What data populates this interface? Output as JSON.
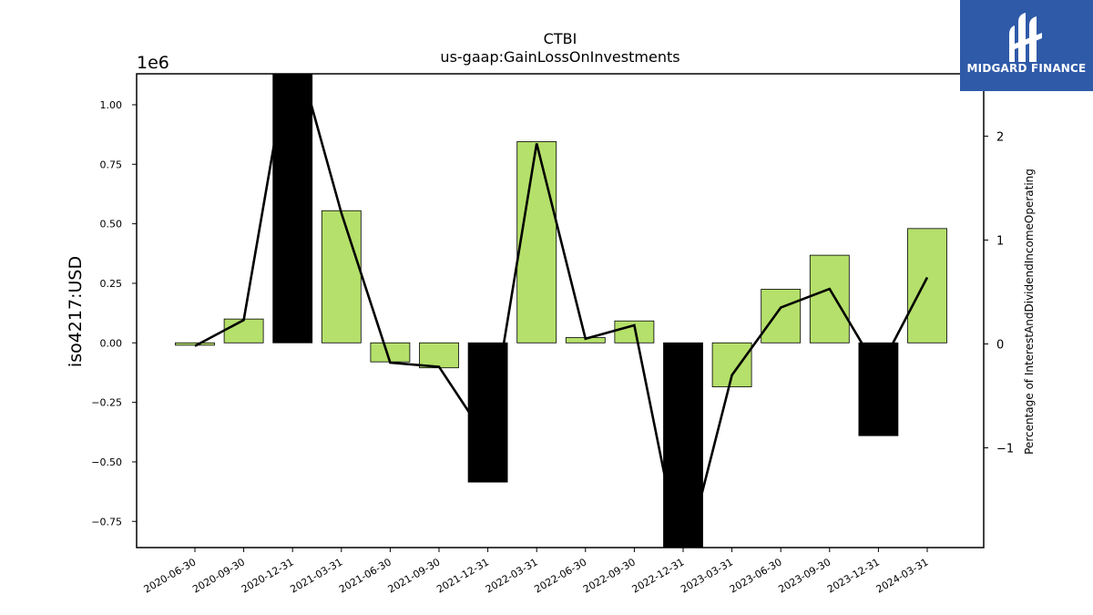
{
  "chart_data": {
    "type": "bar",
    "title": "CTBI",
    "subtitle": "us-gaap:GainLossOnInvestments",
    "ylabel": "iso4217:USD",
    "y2label": "Percentage of InterestAndDividendIncomeOperating",
    "y_offset_label": "1e6",
    "categories": [
      "2020-06-30",
      "2020-09-30",
      "2020-12-31",
      "2021-03-31",
      "2021-06-30",
      "2021-09-30",
      "2021-12-31",
      "2022-03-31",
      "2022-06-30",
      "2022-09-30",
      "2022-12-31",
      "2023-03-31",
      "2023-06-30",
      "2023-09-30",
      "2023-12-31",
      "2024-03-31"
    ],
    "series": [
      {
        "type": "bar",
        "axis": "left",
        "values": [
          -10000,
          100000,
          1220000,
          555000,
          -80000,
          -105000,
          -585000,
          845000,
          22000,
          92000,
          -880000,
          -185000,
          225000,
          368000,
          -390000,
          480000
        ],
        "highlight": [
          false,
          false,
          true,
          false,
          false,
          false,
          true,
          false,
          false,
          false,
          true,
          false,
          false,
          false,
          true,
          false
        ]
      },
      {
        "type": "line",
        "axis": "right",
        "values": [
          -0.02,
          0.23,
          2.95,
          1.26,
          -0.18,
          -0.22,
          -0.93,
          1.93,
          0.05,
          0.18,
          -2.15,
          -0.3,
          0.35,
          0.53,
          -0.26,
          0.64
        ]
      }
    ],
    "ylim": [
      -0.86,
      1.13
    ],
    "y2lim": [
      -1.96,
      2.6
    ],
    "yticks": [
      "−0.75",
      "−0.50",
      "−0.25",
      "0.00",
      "0.25",
      "0.50",
      "0.75",
      "1.00"
    ],
    "yticks_values": [
      -0.75,
      -0.5,
      -0.25,
      0,
      0.25,
      0.5,
      0.75,
      1.0
    ],
    "y2ticks": [
      "−1",
      "0",
      "1",
      "2"
    ],
    "y2ticks_values": [
      -1,
      0,
      1,
      2
    ],
    "grid": false,
    "colors": {
      "bar_positive": "#b5e06b",
      "bar_highlight": "#000000",
      "line": "#000000",
      "edge": "#000000"
    }
  },
  "logo": {
    "text": "MIDGARD FINANCE",
    "background": "#2f5aa8"
  }
}
